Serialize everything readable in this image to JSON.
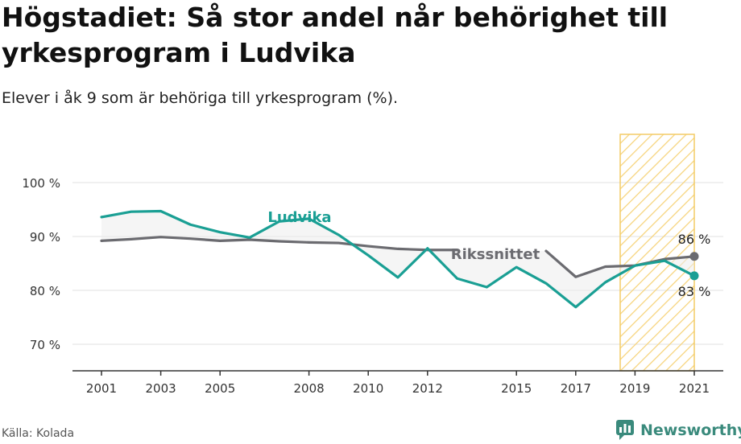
{
  "title": "Högstadiet: Så stor andel når behörighet till yrkesprogram i Ludvika",
  "subtitle": "Elever i åk 9 som är behöriga till yrkesprogram (%).",
  "source": "Källa: Kolada",
  "brand": "Newsworthy",
  "chart_data": {
    "type": "line",
    "x": [
      2001,
      2002,
      2003,
      2004,
      2005,
      2006,
      2007,
      2008,
      2009,
      2010,
      2011,
      2012,
      2013,
      2014,
      2015,
      2016,
      2017,
      2018,
      2019,
      2020,
      2021
    ],
    "xticks": [
      2001,
      2003,
      2005,
      2008,
      2010,
      2012,
      2015,
      2017,
      2019,
      2021
    ],
    "xtick_labels": [
      "2001",
      "2003",
      "2005",
      "2008",
      "2010",
      "2012",
      "2015",
      "2017",
      "2019",
      "2021"
    ],
    "ylim": [
      65,
      100
    ],
    "yticks": [
      70,
      80,
      90,
      100
    ],
    "ytick_labels": [
      "70 %",
      "80 %",
      "90 %",
      "100 %"
    ],
    "series": [
      {
        "name": "Ludvika",
        "color": "#1a9f94",
        "values": [
          93.6,
          94.6,
          94.7,
          92.2,
          90.8,
          89.8,
          92.8,
          93.3,
          90.3,
          86.5,
          82.4,
          87.8,
          82.2,
          80.6,
          84.3,
          81.3,
          76.9,
          81.5,
          84.6,
          85.5,
          82.7
        ],
        "end_label": "83 %"
      },
      {
        "name": "Rikssnittet",
        "color": "#6b6b70",
        "values": [
          89.2,
          89.5,
          89.9,
          89.6,
          89.2,
          89.4,
          89.1,
          88.9,
          88.8,
          88.2,
          87.7,
          87.5,
          87.5,
          null,
          null,
          87.3,
          82.5,
          84.4,
          84.6,
          85.8,
          86.3
        ],
        "end_label": "86 %"
      }
    ],
    "highlight_range": [
      2018.5,
      2021
    ]
  }
}
